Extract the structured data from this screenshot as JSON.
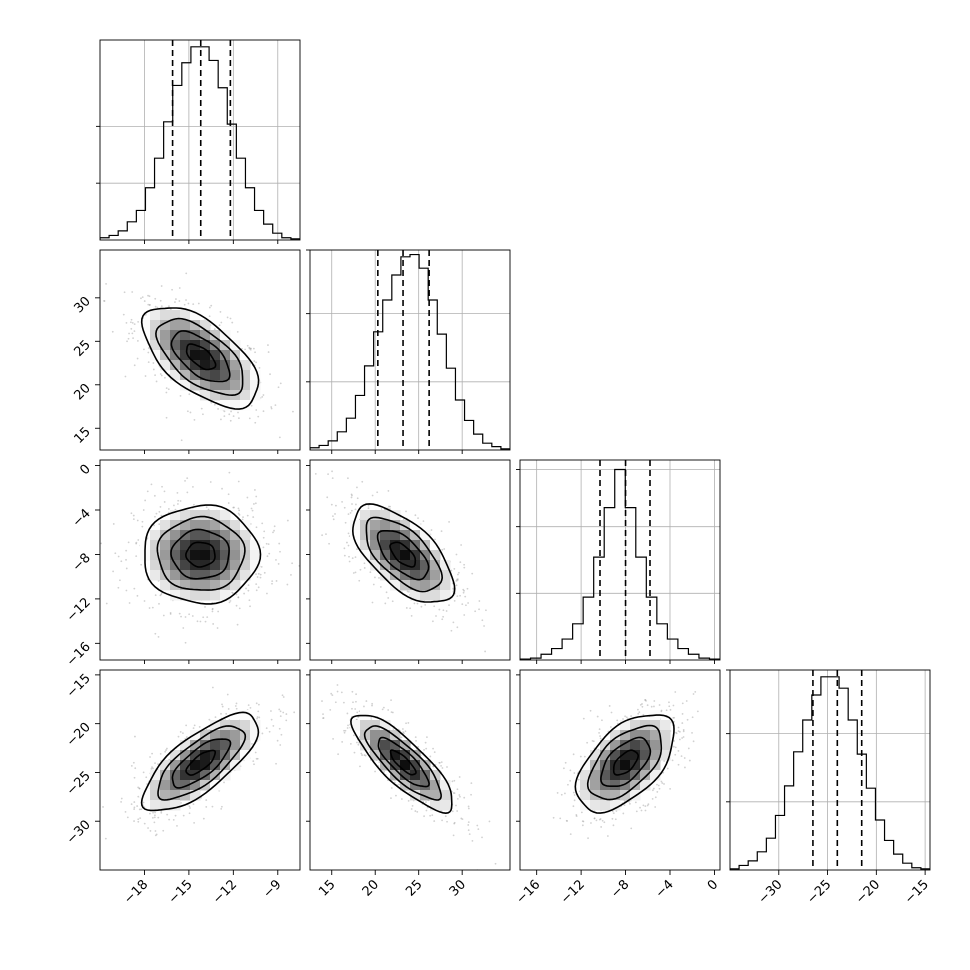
{
  "chart_data": {
    "type": "corner",
    "n_params": 4,
    "grid": true,
    "colors": {
      "line": "#000000",
      "grid": "#b0b0b0",
      "scatter": "#9a9a9a",
      "density": "#000000"
    },
    "params": [
      {
        "index": 0,
        "range": [
          -21,
          -7.5
        ],
        "ticks": [
          -18,
          -15,
          -12,
          -9
        ],
        "tick_labels": [
          "−18",
          "−15",
          "−12",
          "−9"
        ],
        "median": -14.2,
        "q16": -16.1,
        "q84": -12.2,
        "std": 1.95,
        "hist_values": [
          1,
          2,
          4,
          8,
          13,
          23,
          36,
          52,
          68,
          78,
          85,
          85,
          79,
          67,
          51,
          36,
          23,
          13,
          7,
          3,
          1,
          0.5
        ],
        "hist_max": 88,
        "hist_grid": [
          25,
          50
        ]
      },
      {
        "index": 1,
        "range": [
          12.5,
          35.5
        ],
        "ticks": [
          15,
          20,
          25,
          30
        ],
        "tick_labels": [
          "15",
          "20",
          "25",
          "30"
        ],
        "median": 23.2,
        "q16": 20.3,
        "q84": 26.2,
        "std": 2.9,
        "hist_values": [
          1,
          2,
          4,
          8,
          14,
          24,
          37,
          52,
          66,
          77,
          85,
          86,
          80,
          66,
          51,
          36,
          22,
          13,
          7,
          3,
          1.5,
          0.5
        ],
        "hist_max": 88,
        "hist_grid": [
          30,
          60,
          88
        ]
      },
      {
        "index": 2,
        "range": [
          -17.5,
          0.5
        ],
        "ticks": [
          -16,
          -12,
          -8,
          -4,
          0
        ],
        "tick_labels": [
          "−16",
          "−12",
          "−8",
          "−4",
          "0"
        ],
        "median": -8.0,
        "q16": -10.3,
        "q84": -5.8,
        "std": 2.2,
        "hist_values": [
          0.5,
          1,
          3,
          6,
          11,
          19,
          33,
          54,
          80,
          100,
          80,
          54,
          33,
          19,
          11,
          6,
          3,
          1,
          0.5
        ],
        "hist_max": 105,
        "hist_grid": [
          35,
          70,
          100
        ]
      },
      {
        "index": 3,
        "range": [
          -35,
          -14.5
        ],
        "ticks": [
          -30,
          -25,
          -20,
          -15
        ],
        "tick_labels": [
          "−30",
          "−25",
          "−20",
          "−15"
        ],
        "median": -24.0,
        "q16": -26.5,
        "q84": -21.5,
        "std": 2.5,
        "hist_values": [
          0.5,
          2,
          4,
          8,
          14,
          24,
          37,
          52,
          66,
          77,
          85,
          85,
          80,
          66,
          51,
          36,
          22,
          13,
          7,
          3,
          1,
          0.5
        ],
        "hist_max": 88,
        "hist_grid": [
          30,
          60,
          88
        ]
      }
    ],
    "pairs": [
      {
        "row": 1,
        "col": 0,
        "x": 0,
        "y": 1,
        "corr": -0.6,
        "y_ticks": [
          15,
          20,
          25,
          30
        ],
        "y_tick_labels": [
          "15",
          "20",
          "25",
          "30"
        ]
      },
      {
        "row": 2,
        "col": 0,
        "x": 0,
        "y": 2,
        "corr": 0.0,
        "y_ticks": [
          -16,
          -12,
          -8,
          -4,
          0
        ],
        "y_tick_labels": [
          "−16",
          "−12",
          "−8",
          "−4",
          "0"
        ]
      },
      {
        "row": 2,
        "col": 1,
        "x": 1,
        "y": 2,
        "corr": -0.62
      },
      {
        "row": 3,
        "col": 0,
        "x": 0,
        "y": 3,
        "corr": 0.74,
        "y_ticks": [
          -30,
          -25,
          -20,
          -15
        ],
        "y_tick_labels": [
          "−30",
          "−25",
          "−20",
          "−15"
        ]
      },
      {
        "row": 3,
        "col": 1,
        "x": 1,
        "y": 3,
        "corr": -0.82
      },
      {
        "row": 3,
        "col": 2,
        "x": 2,
        "y": 3,
        "corr": 0.55
      }
    ]
  }
}
